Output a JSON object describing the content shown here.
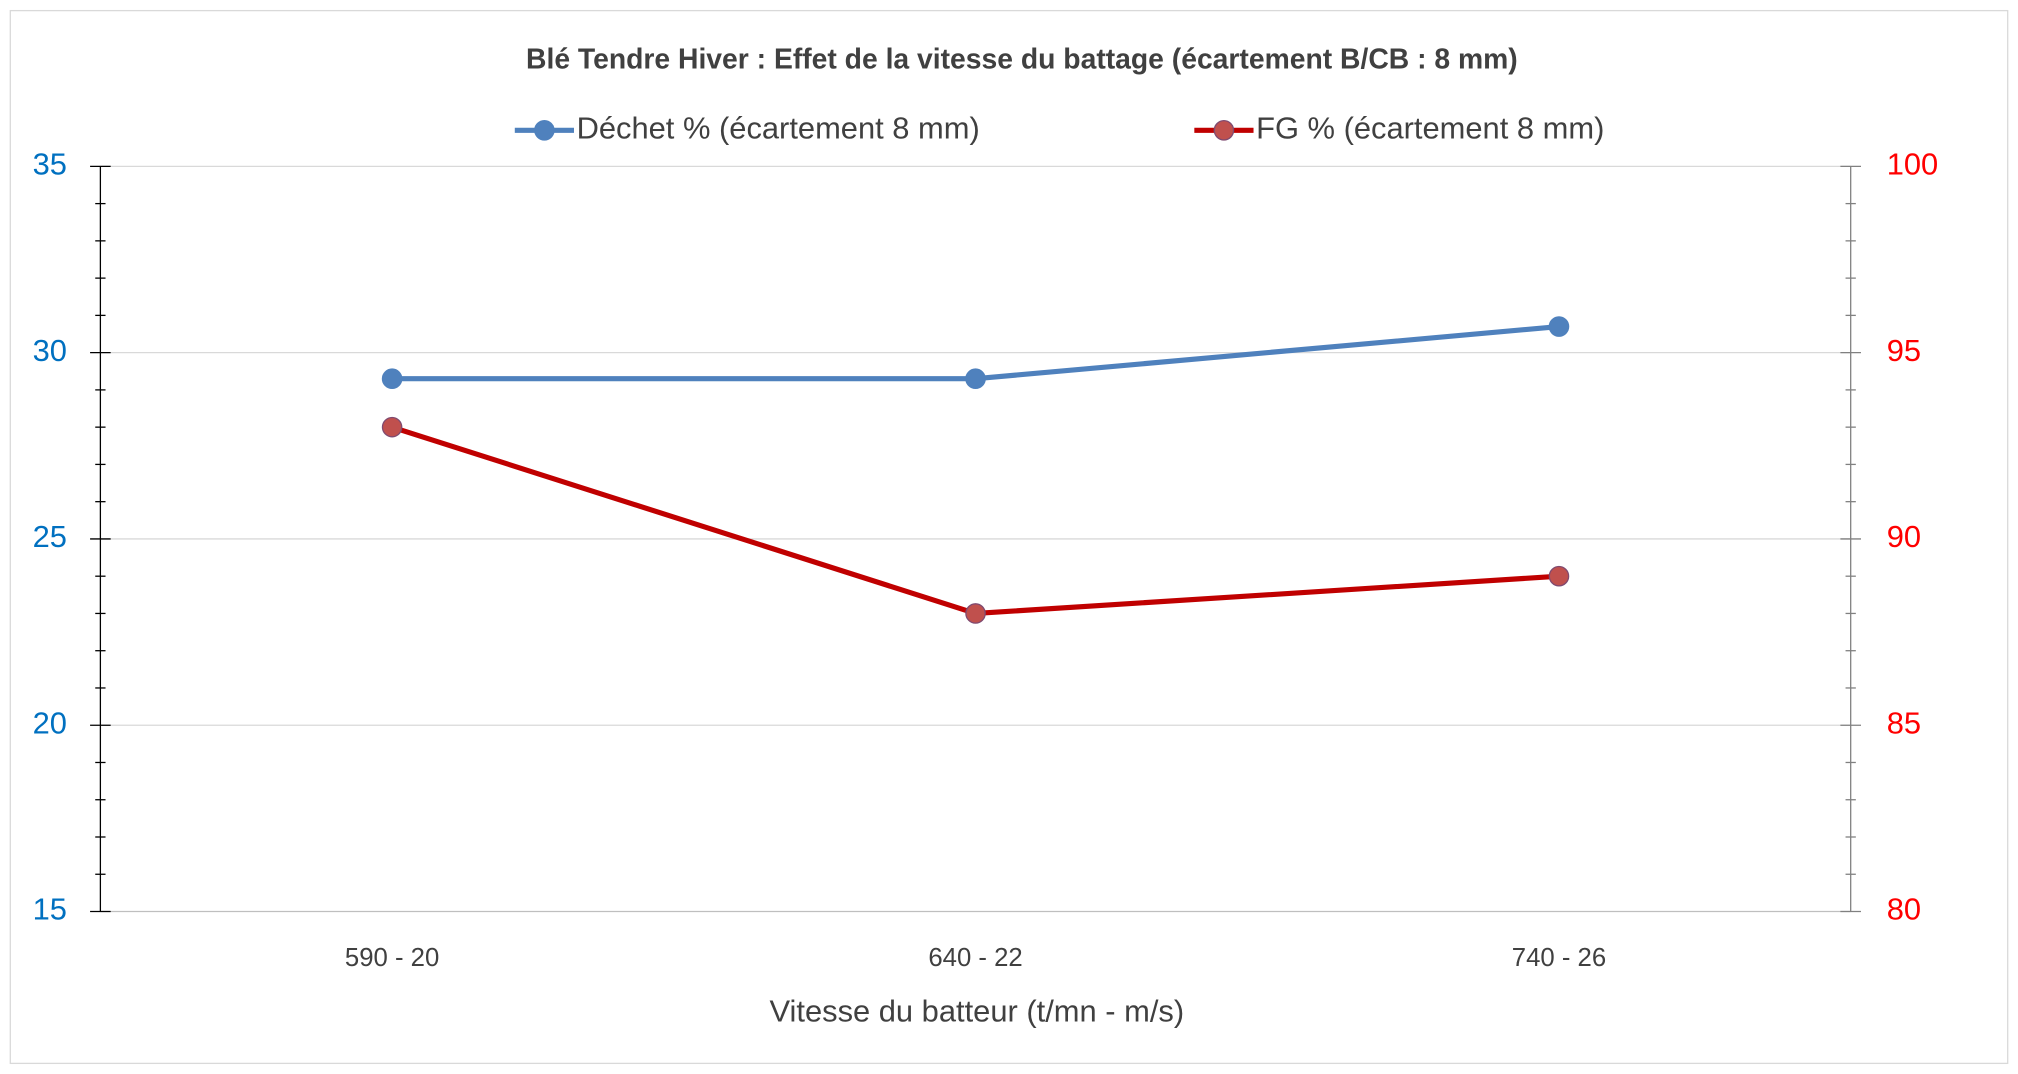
{
  "chart_data": {
    "type": "line",
    "title": "Blé Tendre Hiver : Effet de la vitesse du battage (écartement B/CB : 8 mm)",
    "x_label": "Vitesse du batteur (t/mn - m/s)",
    "categories": [
      "590 - 20",
      "640 - 22",
      "740 - 26"
    ],
    "series": [
      {
        "name": "Déchet % (écartement 8 mm)",
        "color": "#4f81bd",
        "values": [
          29.3,
          29.3,
          30.7
        ]
      },
      {
        "name": "FG % (écartement 8 mm)",
        "color": "#c00000",
        "values": [
          93,
          88,
          89
        ],
        "axis": "y2"
      }
    ],
    "ylim": [
      15,
      35
    ],
    "yticks": [
      15,
      20,
      25,
      30,
      35
    ],
    "y2lim": [
      80,
      100
    ],
    "y2ticks": [
      80,
      85,
      90,
      95,
      100
    ],
    "grid": true,
    "legend": "top"
  }
}
